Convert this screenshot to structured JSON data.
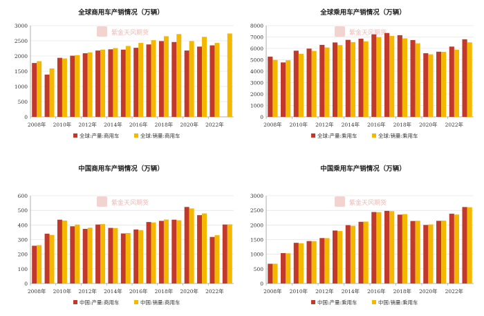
{
  "watermark": "紫金天风期货",
  "colors": {
    "production": "#c0392b",
    "sales": "#f5b800",
    "axis": "#999999",
    "grid": "#d9d9d9",
    "text": "#333333"
  },
  "chart_data": [
    {
      "type": "bar",
      "title": "全球商用车产销情况（万辆）",
      "categories": [
        "2008年",
        "2009年",
        "2010年",
        "2011年",
        "2012年",
        "2013年",
        "2014年",
        "2015年",
        "2016年",
        "2017年",
        "2018年",
        "2019年",
        "2020年",
        "2021年",
        "2022年",
        "2023年"
      ],
      "x_tick_labels": [
        "2008年",
        "2010年",
        "2012年",
        "2014年",
        "2016年",
        "2018年",
        "2020年",
        "2022年"
      ],
      "ylim": [
        0,
        3000
      ],
      "yticks": [
        0,
        500,
        1000,
        1500,
        2000,
        2500,
        3000
      ],
      "grid": true,
      "legend_position": "bottom",
      "series": [
        {
          "name": "全球:产量:商用车",
          "color": "#c0392b",
          "values": [
            1770,
            1390,
            1940,
            2010,
            2090,
            2180,
            2220,
            2210,
            2270,
            2380,
            2490,
            2460,
            2180,
            2310,
            2350,
            null
          ]
        },
        {
          "name": "全球:销量:商用车",
          "color": "#f5b800",
          "values": [
            1830,
            1590,
            1920,
            2030,
            2120,
            2210,
            2260,
            2330,
            2430,
            2520,
            2650,
            2720,
            2490,
            2630,
            2430,
            2740
          ]
        }
      ]
    },
    {
      "type": "bar",
      "title": "全球乘用车产销情况（万辆）",
      "categories": [
        "2008年",
        "2009年",
        "2010年",
        "2011年",
        "2012年",
        "2013年",
        "2014年",
        "2015年",
        "2016年",
        "2017年",
        "2018年",
        "2019年",
        "2020年",
        "2021年",
        "2022年",
        "2023年"
      ],
      "x_tick_labels": [
        "2008年",
        "2010年",
        "2012年",
        "2014年",
        "2016年",
        "2018年",
        "2020年",
        "2022年"
      ],
      "ylim": [
        0,
        8000
      ],
      "yticks": [
        0,
        1000,
        2000,
        3000,
        4000,
        5000,
        6000,
        7000,
        8000
      ],
      "grid": true,
      "legend_position": "bottom",
      "series": [
        {
          "name": "全球:产量:乘用车",
          "color": "#c0392b",
          "values": [
            5280,
            4770,
            5800,
            5980,
            6310,
            6520,
            6750,
            6850,
            7230,
            7350,
            7160,
            6730,
            5580,
            5710,
            6160,
            6800
          ]
        },
        {
          "name": "全球:销量:乘用车",
          "color": "#f5b800",
          "values": [
            4990,
            4960,
            5530,
            5780,
            6080,
            6290,
            6550,
            6620,
            6980,
            7090,
            6880,
            6450,
            5480,
            5700,
            5890,
            6530
          ]
        }
      ]
    },
    {
      "type": "bar",
      "title": "中国商用车产销情况（万辆）",
      "categories": [
        "2008年",
        "2009年",
        "2010年",
        "2011年",
        "2012年",
        "2013年",
        "2014年",
        "2015年",
        "2016年",
        "2017年",
        "2018年",
        "2019年",
        "2020年",
        "2021年",
        "2022年",
        "2023年"
      ],
      "x_tick_labels": [
        "2008年",
        "2010年",
        "2012年",
        "2014年",
        "2016年",
        "2018年",
        "2020年",
        "2022年"
      ],
      "ylim": [
        0,
        600
      ],
      "yticks": [
        0,
        100,
        200,
        300,
        400,
        500,
        600
      ],
      "grid": true,
      "legend_position": "bottom",
      "series": [
        {
          "name": "中国:产量:商用车",
          "color": "#c0392b",
          "values": [
            258,
            340,
            436,
            391,
            373,
            403,
            380,
            342,
            369,
            420,
            428,
            436,
            523,
            467,
            318,
            403
          ]
        },
        {
          "name": "中国:销量:商用车",
          "color": "#f5b800",
          "values": [
            262,
            332,
            430,
            403,
            381,
            406,
            379,
            345,
            365,
            417,
            437,
            432,
            513,
            479,
            330,
            404
          ]
        }
      ]
    },
    {
      "type": "bar",
      "title": "中国乘用车产销情况（万辆）",
      "categories": [
        "2008年",
        "2009年",
        "2010年",
        "2011年",
        "2012年",
        "2013年",
        "2014年",
        "2015年",
        "2016年",
        "2017年",
        "2018年",
        "2019年",
        "2020年",
        "2021年",
        "2022年",
        "2023年"
      ],
      "x_tick_labels": [
        "2008年",
        "2010年",
        "2012年",
        "2014年",
        "2016年",
        "2018年",
        "2020年",
        "2022年"
      ],
      "ylim": [
        0,
        3000
      ],
      "yticks": [
        0,
        500,
        1000,
        1500,
        2000,
        2500,
        3000
      ],
      "grid": true,
      "legend_position": "bottom",
      "series": [
        {
          "name": "中国:产量:乘用车",
          "color": "#c0392b",
          "values": [
            674,
            1038,
            1390,
            1449,
            1552,
            1809,
            1992,
            2108,
            2442,
            2481,
            2353,
            2136,
            1999,
            2141,
            2384,
            2612
          ]
        },
        {
          "name": "中国:销量:乘用车",
          "color": "#f5b800",
          "values": [
            676,
            1033,
            1376,
            1447,
            1550,
            1793,
            1970,
            2115,
            2438,
            2472,
            2371,
            2144,
            2018,
            2148,
            2356,
            2606
          ]
        }
      ]
    }
  ]
}
